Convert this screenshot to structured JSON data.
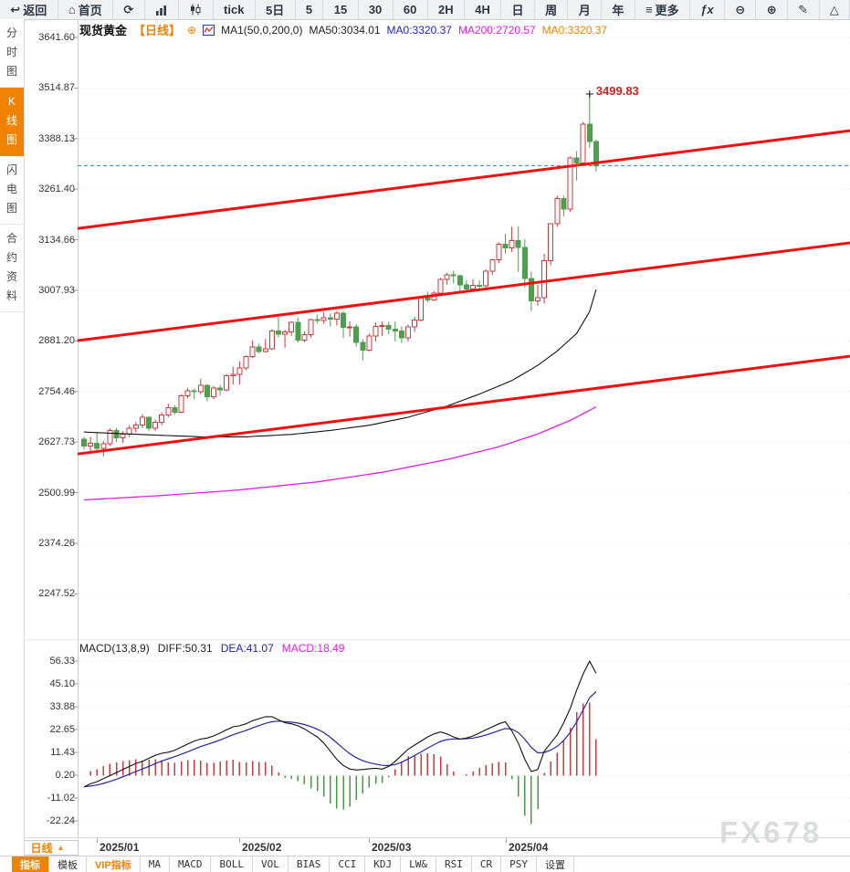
{
  "watermark": "FX678",
  "icons": {
    "add_indicator": "⊕",
    "settings_sun": "☀",
    "triangle_up": "▲"
  },
  "toolbar": {
    "items": [
      {
        "name": "back",
        "icon": "arrow-back",
        "label": "返回"
      },
      {
        "name": "home",
        "icon": "home",
        "label": "首页"
      },
      {
        "name": "refresh",
        "icon": "refresh",
        "label": ""
      },
      {
        "name": "bar-chart",
        "icon": "bar-chart",
        "label": ""
      },
      {
        "name": "candlestick",
        "icon": "candlestick",
        "label": ""
      },
      {
        "name": "tick",
        "icon": "",
        "label": "tick"
      },
      {
        "name": "5d",
        "icon": "",
        "label": "5日"
      },
      {
        "name": "5m",
        "icon": "",
        "label": "5"
      },
      {
        "name": "15m",
        "icon": "",
        "label": "15"
      },
      {
        "name": "30m",
        "icon": "",
        "label": "30"
      },
      {
        "name": "60m",
        "icon": "",
        "label": "60"
      },
      {
        "name": "2h",
        "icon": "",
        "label": "2H"
      },
      {
        "name": "4h",
        "icon": "",
        "label": "4H"
      },
      {
        "name": "day",
        "icon": "",
        "label": "日"
      },
      {
        "name": "week",
        "icon": "",
        "label": "周"
      },
      {
        "name": "month",
        "icon": "",
        "label": "月"
      },
      {
        "name": "year",
        "icon": "",
        "label": "年"
      },
      {
        "name": "more",
        "icon": "menu",
        "label": "更多"
      },
      {
        "name": "fx",
        "icon": "fx",
        "label": ""
      },
      {
        "name": "zoom-out",
        "icon": "zoom-out",
        "label": ""
      },
      {
        "name": "zoom-in",
        "icon": "zoom-in",
        "label": ""
      },
      {
        "name": "draw",
        "icon": "pencil",
        "label": ""
      },
      {
        "name": "shapes",
        "icon": "triangle",
        "label": ""
      }
    ]
  },
  "sidebar": {
    "items": [
      {
        "label": "分时图",
        "active": false
      },
      {
        "label": "K线图",
        "active": true
      },
      {
        "label": "闪电图",
        "active": false
      },
      {
        "label": "合约资料",
        "active": false
      }
    ]
  },
  "chart_header": {
    "symbol": "现货黄金",
    "period_tag": "【日线】",
    "ma_settings": "MA1(50,0,200,0)",
    "ma50": "MA50:3034.01",
    "ma0_blue": "MA0:3320.37",
    "ma200": "MA200:2720.57",
    "ma0_orange": "MA0:3320.37"
  },
  "macd_header": {
    "name": "MACD(13,8,9)",
    "diff": "DIFF:50.31",
    "dea": "DEA:41.07",
    "macd": "MACD:18.49"
  },
  "x_axis": {
    "period_selector": "日线",
    "months": [
      {
        "label": "2025/01",
        "candle_index": 2
      },
      {
        "label": "2025/02",
        "candle_index": 24
      },
      {
        "label": "2025/03",
        "candle_index": 44
      },
      {
        "label": "2025/04",
        "candle_index": 65
      }
    ]
  },
  "bottom_tabs": [
    {
      "label": "指标",
      "active": true,
      "vip": false,
      "latin": false
    },
    {
      "label": "模板",
      "active": false,
      "vip": false,
      "latin": false
    },
    {
      "label": "VIP指标",
      "active": false,
      "vip": true,
      "latin": false
    },
    {
      "label": "MA",
      "active": false,
      "vip": false,
      "latin": true
    },
    {
      "label": "MACD",
      "active": false,
      "vip": false,
      "latin": true
    },
    {
      "label": "BOLL",
      "active": false,
      "vip": false,
      "latin": true
    },
    {
      "label": "VOL",
      "active": false,
      "vip": false,
      "latin": true
    },
    {
      "label": "BIAS",
      "active": false,
      "vip": false,
      "latin": true
    },
    {
      "label": "CCI",
      "active": false,
      "vip": false,
      "latin": true
    },
    {
      "label": "KDJ",
      "active": false,
      "vip": false,
      "latin": true
    },
    {
      "label": "LW&",
      "active": false,
      "vip": false,
      "latin": true
    },
    {
      "label": "RSI",
      "active": false,
      "vip": false,
      "latin": true
    },
    {
      "label": "CR",
      "active": false,
      "vip": false,
      "latin": true
    },
    {
      "label": "PSY",
      "active": false,
      "vip": false,
      "latin": true
    },
    {
      "label": "设置",
      "active": false,
      "vip": false,
      "latin": false
    }
  ],
  "colors": {
    "accent_orange": "#f08200",
    "up_candle": "#c43c3c",
    "down_candle": "#4f9d4f",
    "trend_line": "#ee1111",
    "ma50_line": "#111111",
    "ma200_line": "#e020e0",
    "diff_line": "#111111",
    "dea_line": "#26269c",
    "hist_positive": "#c43c3c",
    "hist_negative": "#4a9a4a",
    "last_price_line": "#2a7fd0",
    "annotation": "#cc2222",
    "grid": "#dfe3e8",
    "axis": "#c9ced4"
  },
  "chart_data": {
    "type": "candlestick_with_macd",
    "title": "现货黄金 日线 (Spot Gold Daily)",
    "price_axis_labels": [
      "3641.60",
      "3514.87",
      "3388.13",
      "3261.40",
      "3134.66",
      "3007.93",
      "2881.20",
      "2754.46",
      "2627.73",
      "2500.99",
      "2374.26",
      "2247.52"
    ],
    "price_axis": {
      "top_value": 3641.6,
      "step_value": 126.735,
      "min_label": 2247.52,
      "grid": true
    },
    "macd_axis_labels": [
      "56.33",
      "45.10",
      "33.88",
      "22.65",
      "11.43",
      "0.20",
      "-11.02",
      "-22.24"
    ],
    "macd_axis": {
      "top_value": 56.33,
      "step_value": 11.225
    },
    "last_price_line_value": 3320.37,
    "high_annotation": {
      "text": "3499.83",
      "candle_index": 78,
      "price": 3499.83
    },
    "candles": [
      [
        2635,
        2641,
        2610,
        2618
      ],
      [
        2618,
        2641,
        2605,
        2625
      ],
      [
        2625,
        2652,
        2605,
        2612
      ],
      [
        2612,
        2630,
        2592,
        2624
      ],
      [
        2624,
        2662,
        2618,
        2657
      ],
      [
        2657,
        2663,
        2628,
        2638
      ],
      [
        2638,
        2655,
        2626,
        2648
      ],
      [
        2648,
        2670,
        2640,
        2662
      ],
      [
        2662,
        2678,
        2652,
        2670
      ],
      [
        2670,
        2698,
        2663,
        2690
      ],
      [
        2690,
        2693,
        2655,
        2663
      ],
      [
        2663,
        2684,
        2656,
        2677
      ],
      [
        2677,
        2702,
        2670,
        2696
      ],
      [
        2696,
        2724,
        2690,
        2714
      ],
      [
        2714,
        2720,
        2697,
        2703
      ],
      [
        2703,
        2748,
        2700,
        2744
      ],
      [
        2744,
        2763,
        2738,
        2756
      ],
      [
        2756,
        2762,
        2735,
        2754
      ],
      [
        2754,
        2786,
        2748,
        2770
      ],
      [
        2770,
        2773,
        2730,
        2741
      ],
      [
        2741,
        2768,
        2735,
        2763
      ],
      [
        2763,
        2771,
        2744,
        2759
      ],
      [
        2759,
        2798,
        2755,
        2794
      ],
      [
        2794,
        2817,
        2772,
        2798
      ],
      [
        2798,
        2830,
        2772,
        2814
      ],
      [
        2814,
        2845,
        2808,
        2842
      ],
      [
        2842,
        2882,
        2838,
        2866
      ],
      [
        2866,
        2875,
        2850,
        2855
      ],
      [
        2855,
        2886,
        2852,
        2861
      ],
      [
        2861,
        2911,
        2858,
        2906
      ],
      [
        2906,
        2942,
        2890,
        2898
      ],
      [
        2898,
        2909,
        2864,
        2904
      ],
      [
        2904,
        2930,
        2894,
        2928
      ],
      [
        2928,
        2940,
        2877,
        2883
      ],
      [
        2883,
        2905,
        2878,
        2897
      ],
      [
        2897,
        2937,
        2890,
        2935
      ],
      [
        2935,
        2947,
        2925,
        2933
      ],
      [
        2933,
        2954,
        2924,
        2939
      ],
      [
        2939,
        2950,
        2917,
        2936
      ],
      [
        2936,
        2956,
        2920,
        2951
      ],
      [
        2951,
        2956,
        2888,
        2915
      ],
      [
        2915,
        2930,
        2892,
        2916
      ],
      [
        2916,
        2923,
        2867,
        2877
      ],
      [
        2877,
        2885,
        2832,
        2858
      ],
      [
        2858,
        2900,
        2855,
        2894
      ],
      [
        2894,
        2927,
        2880,
        2918
      ],
      [
        2918,
        2930,
        2894,
        2920
      ],
      [
        2920,
        2929,
        2898,
        2911
      ],
      [
        2911,
        2930,
        2880,
        2906
      ],
      [
        2906,
        2918,
        2876,
        2889
      ],
      [
        2889,
        2922,
        2880,
        2916
      ],
      [
        2916,
        2942,
        2904,
        2934
      ],
      [
        2934,
        2992,
        2930,
        2989
      ],
      [
        2989,
        3005,
        2978,
        2984
      ],
      [
        2984,
        3006,
        2982,
        3001
      ],
      [
        3001,
        3039,
        2998,
        3035
      ],
      [
        3035,
        3052,
        3022,
        3047
      ],
      [
        3047,
        3057,
        3025,
        3044
      ],
      [
        3044,
        3048,
        3002,
        3022
      ],
      [
        3022,
        3034,
        3003,
        3011
      ],
      [
        3011,
        3036,
        3006,
        3020
      ],
      [
        3020,
        3033,
        3010,
        3019
      ],
      [
        3019,
        3060,
        3015,
        3056
      ],
      [
        3056,
        3087,
        3047,
        3085
      ],
      [
        3085,
        3128,
        3076,
        3124
      ],
      [
        3124,
        3149,
        3100,
        3114
      ],
      [
        3114,
        3167,
        3104,
        3133
      ],
      [
        3133,
        3168,
        3054,
        3115
      ],
      [
        3115,
        3136,
        3015,
        3038
      ],
      [
        3038,
        3055,
        2956,
        2982
      ],
      [
        2982,
        3022,
        2970,
        2990
      ],
      [
        2990,
        3100,
        2975,
        3082
      ],
      [
        3082,
        3176,
        3071,
        3175
      ],
      [
        3175,
        3245,
        3167,
        3238
      ],
      [
        3238,
        3245,
        3193,
        3211
      ],
      [
        3211,
        3343,
        3205,
        3340
      ],
      [
        3340,
        3357,
        3283,
        3327
      ],
      [
        3327,
        3430,
        3324,
        3424
      ],
      [
        3424,
        3499.83,
        3365,
        3381
      ],
      [
        3381,
        3386,
        3305,
        3320
      ]
    ],
    "ma50_keypoints": [
      [
        0,
        2653
      ],
      [
        10,
        2646
      ],
      [
        18,
        2641
      ],
      [
        25,
        2641
      ],
      [
        32,
        2647
      ],
      [
        38,
        2657
      ],
      [
        44,
        2670
      ],
      [
        50,
        2690
      ],
      [
        56,
        2718
      ],
      [
        61,
        2748
      ],
      [
        66,
        2782
      ],
      [
        70,
        2820
      ],
      [
        73,
        2856
      ],
      [
        76,
        2900
      ],
      [
        78,
        2955
      ],
      [
        79,
        3010
      ]
    ],
    "ma200_keypoints": [
      [
        0,
        2483
      ],
      [
        12,
        2494
      ],
      [
        24,
        2508
      ],
      [
        36,
        2528
      ],
      [
        46,
        2552
      ],
      [
        56,
        2584
      ],
      [
        64,
        2616
      ],
      [
        70,
        2648
      ],
      [
        75,
        2682
      ],
      [
        79,
        2716
      ]
    ],
    "macd_diff": [
      -5.5,
      -4,
      -3,
      -1.5,
      0,
      1.5,
      3,
      4.5,
      6,
      7,
      8.5,
      10,
      11,
      11.5,
      12.5,
      14,
      15.5,
      17,
      18,
      18.5,
      19.5,
      21,
      22.5,
      24,
      24.5,
      25.5,
      27,
      28,
      29,
      29,
      27.5,
      26,
      25.5,
      24.5,
      23,
      21,
      19,
      16,
      12,
      8,
      5,
      3.2,
      2.8,
      3,
      3.4,
      3.6,
      3.2,
      4.5,
      7,
      10,
      13,
      15,
      17,
      19,
      20.5,
      21.5,
      20.5,
      19,
      18,
      18.5,
      19.5,
      21,
      22.5,
      24,
      25.5,
      26.5,
      22,
      16,
      8,
      2,
      3,
      12,
      16,
      20,
      26,
      33,
      42,
      50,
      56.3,
      50.3
    ],
    "trendlines": [
      {
        "price_at_left": 3163,
        "price_at_right": 3408
      },
      {
        "price_at_left": 2882,
        "price_at_right": 3127
      },
      {
        "price_at_left": 2598,
        "price_at_right": 2843
      }
    ]
  }
}
